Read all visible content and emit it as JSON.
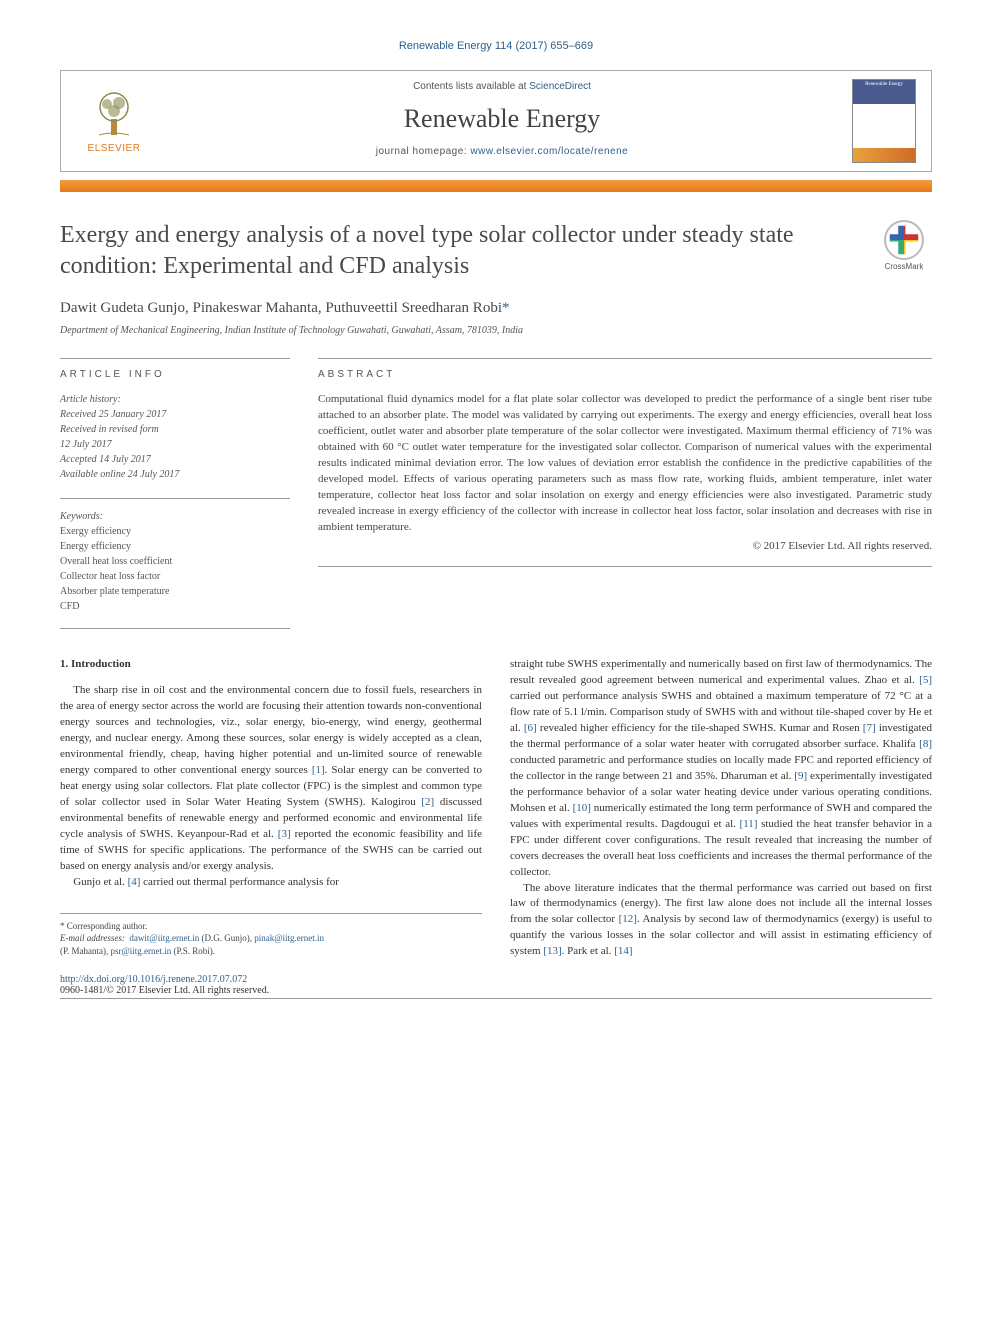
{
  "journal_ref": "Renewable Energy 114 (2017) 655–669",
  "header": {
    "contents_prefix": "Contents lists available at ",
    "contents_link": "ScienceDirect",
    "journal_name": "Renewable Energy",
    "homepage_prefix": "journal homepage: ",
    "homepage_link": "www.elsevier.com/locate/renene",
    "publisher_logo_text": "ELSEVIER",
    "cover_label": "Renewable Energy"
  },
  "crossmark_label": "CrossMark",
  "title": "Exergy and energy analysis of a novel type solar collector under steady state condition: Experimental and CFD analysis",
  "authors": "Dawit Gudeta Gunjo, Pinakeswar Mahanta, Puthuveettil Sreedharan Robi",
  "corr_mark": "*",
  "affiliation": "Department of Mechanical Engineering, Indian Institute of Technology Guwahati, Guwahati, Assam, 781039, India",
  "article_info": {
    "heading": "ARTICLE INFO",
    "history_label": "Article history:",
    "received": "Received 25 January 2017",
    "revised": "Received in revised form",
    "revised_date": "12 July 2017",
    "accepted": "Accepted 14 July 2017",
    "online": "Available online 24 July 2017",
    "keywords_label": "Keywords:",
    "keywords": [
      "Exergy efficiency",
      "Energy efficiency",
      "Overall heat loss coefficient",
      "Collector heat loss factor",
      "Absorber plate temperature",
      "CFD"
    ]
  },
  "abstract": {
    "heading": "ABSTRACT",
    "text": "Computational fluid dynamics model for a flat plate solar collector was developed to predict the performance of a single bent riser tube attached to an absorber plate. The model was validated by carrying out experiments. The exergy and energy efficiencies, overall heat loss coefficient, outlet water and absorber plate temperature of the solar collector were investigated. Maximum thermal efficiency of 71% was obtained with 60 °C outlet water temperature for the investigated solar collector. Comparison of numerical values with the experimental results indicated minimal deviation error. The low values of deviation error establish the confidence in the predictive capabilities of the developed model. Effects of various operating parameters such as mass flow rate, working fluids, ambient temperature, inlet water temperature, collector heat loss factor and solar insolation on exergy and energy efficiencies were also investigated. Parametric study revealed increase in exergy efficiency of the collector with increase in collector heat loss factor, solar insolation and decreases with rise in ambient temperature.",
    "copyright": "© 2017 Elsevier Ltd. All rights reserved."
  },
  "body": {
    "intro_heading": "1. Introduction",
    "col1_p1": "The sharp rise in oil cost and the environmental concern due to fossil fuels, researchers in the area of energy sector across the world are focusing their attention towards non-conventional energy sources and technologies, viz., solar energy, bio-energy, wind energy, geothermal energy, and nuclear energy. Among these sources, solar energy is widely accepted as a clean, environmental friendly, cheap, having higher potential and un-limited source of renewable energy compared to other conventional energy sources [1]. Solar energy can be converted to heat energy using solar collectors. Flat plate collector (FPC) is the simplest and common type of solar collector used in Solar Water Heating System (SWHS). Kalogirou [2] discussed environmental benefits of renewable energy and performed economic and environmental life cycle analysis of SWHS. Keyanpour-Rad et al. [3] reported the economic feasibility and life time of SWHS for specific applications. The performance of the SWHS can be carried out based on energy analysis and/or exergy analysis.",
    "col1_p2": "Gunjo et al. [4] carried out thermal performance analysis for",
    "col2_p1": "straight tube SWHS experimentally and numerically based on first law of thermodynamics. The result revealed good agreement between numerical and experimental values. Zhao et al. [5] carried out performance analysis SWHS and obtained a maximum temperature of 72 °C at a flow rate of 5.1 l/min. Comparison study of SWHS with and without tile-shaped cover by He et al. [6] revealed higher efficiency for the tile-shaped SWHS. Kumar and Rosen [7] investigated the thermal performance of a solar water heater with corrugated absorber surface. Khalifa [8] conducted parametric and performance studies on locally made FPC and reported efficiency of the collector in the range between 21 and 35%. Dharuman et al. [9] experimentally investigated the performance behavior of a solar water heating device under various operating conditions. Mohsen et al. [10] numerically estimated the long term performance of SWH and compared the values with experimental results. Dagdougui et al. [11] studied the heat transfer behavior in a FPC under different cover configurations. The result revealed that increasing the number of covers decreases the overall heat loss coefficients and increases the thermal performance of the collector.",
    "col2_p2": "The above literature indicates that the thermal performance was carried out based on first law of thermodynamics (energy). The first law alone does not include all the internal losses from the solar collector [12]. Analysis by second law of thermodynamics (exergy) is useful to quantify the various losses in the solar collector and will assist in estimating efficiency of system [13]. Park et al. [14]"
  },
  "footer": {
    "corr_label": "* Corresponding author.",
    "email_label": "E-mail addresses:",
    "email1": "dawit@iitg.ernet.in",
    "email1_who": " (D.G. Gunjo), ",
    "email2": "pinak@iitg.ernet.in",
    "email2_who": "(P. Mahanta), ",
    "email3": "psr@iitg.ernet.in",
    "email3_who": " (P.S. Robi).",
    "doi": "http://dx.doi.org/10.1016/j.renene.2017.07.072",
    "issn_line": "0960-1481/© 2017 Elsevier Ltd. All rights reserved."
  },
  "colors": {
    "link": "#2e5f8a",
    "accent_orange": "#e67817",
    "text_gray": "#4a4a4a"
  }
}
